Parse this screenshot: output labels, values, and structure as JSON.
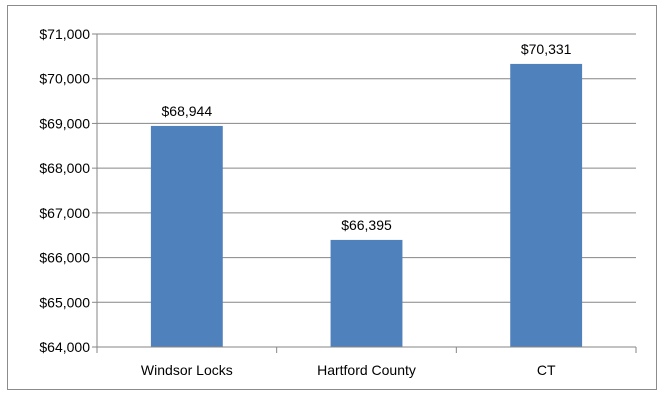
{
  "chart_data": {
    "type": "bar",
    "categories": [
      "Windsor Locks",
      "Hartford County",
      "CT"
    ],
    "values": [
      68944,
      66395,
      70331
    ],
    "data_labels": [
      "$68,944",
      "$66,395",
      "$70,331"
    ],
    "title": "",
    "xlabel": "",
    "ylabel": "",
    "ylim": [
      64000,
      71000
    ],
    "yticks": [
      64000,
      65000,
      66000,
      67000,
      68000,
      69000,
      70000,
      71000
    ],
    "ytick_labels": [
      "$64,000",
      "$65,000",
      "$66,000",
      "$67,000",
      "$68,000",
      "$69,000",
      "$70,000",
      "$71,000"
    ],
    "grid": true,
    "legend": "none",
    "bar_color": "#4f81bd",
    "gridline_color": "#868686"
  }
}
